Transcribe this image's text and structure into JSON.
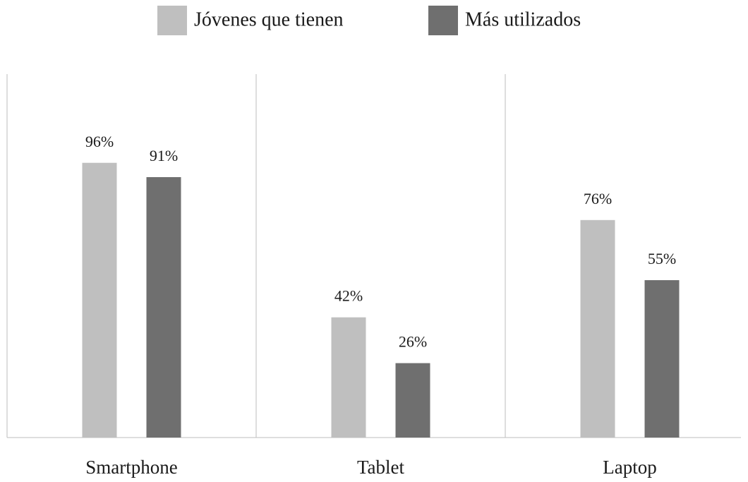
{
  "chart_data": {
    "type": "bar",
    "categories": [
      "Smartphone",
      "Tablet",
      "Laptop"
    ],
    "series": [
      {
        "name": "Jóvenes que tienen",
        "color": "#bfbfbf",
        "values": [
          96,
          42,
          76
        ],
        "value_labels": [
          "96%",
          "42%",
          "76%"
        ]
      },
      {
        "name": "Más utilizados",
        "color": "#6f6f6f",
        "values": [
          91,
          26,
          55
        ],
        "value_labels": [
          "91%",
          "26%",
          "55%"
        ]
      }
    ],
    "ylim": [
      0,
      127
    ],
    "legend": "top"
  }
}
